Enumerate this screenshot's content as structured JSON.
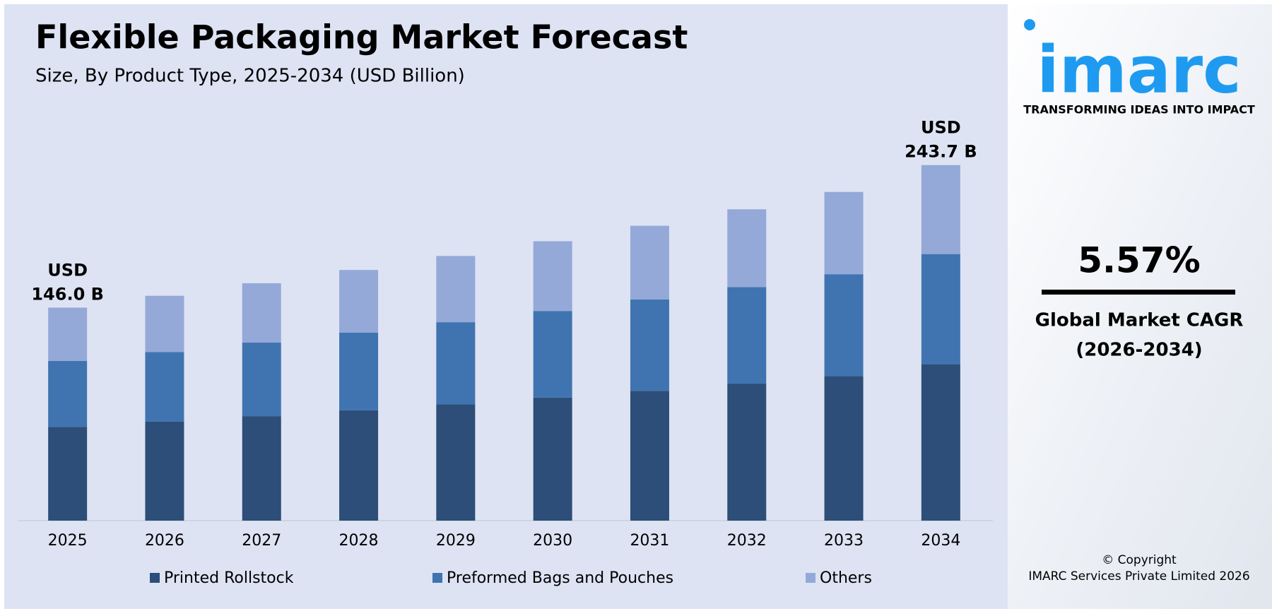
{
  "chart_data": {
    "type": "stacked_bar",
    "title": "Flexible Packaging Market Forecast",
    "subtitle": "Size, By Product Type, 2025-2034 (USD Billion)",
    "categories": [
      "2025",
      "2026",
      "2027",
      "2028",
      "2029",
      "2030",
      "2031",
      "2032",
      "2033",
      "2034"
    ],
    "series": [
      {
        "name": "Printed Rollstock",
        "color": "#2c4e78",
        "values": [
          64.2,
          67.8,
          71.6,
          75.6,
          79.8,
          84.3,
          88.9,
          93.9,
          99.1,
          107.2
        ]
      },
      {
        "name": "Preformed Bags and Pouches",
        "color": "#4074b0",
        "values": [
          45.3,
          47.8,
          50.4,
          53.3,
          56.2,
          59.4,
          62.7,
          66.2,
          69.8,
          75.5
        ]
      },
      {
        "name": "Others",
        "color": "#94a9d8",
        "values": [
          36.5,
          38.5,
          40.7,
          42.9,
          45.4,
          47.8,
          50.5,
          53.3,
          56.4,
          61.0
        ]
      }
    ],
    "ylim": [
      0,
      260
    ],
    "annotations": [
      {
        "category": "2025",
        "value": 146.0,
        "label_lines": [
          "USD",
          "146.0 B"
        ]
      },
      {
        "category": "2034",
        "value": 243.7,
        "label_lines": [
          "USD",
          "243.7 B"
        ]
      }
    ]
  },
  "sidebar": {
    "logo": "imarc",
    "tagline": "TRANSFORMING IDEAS INTO IMPACT",
    "cagr": "5.57%",
    "cagr_label": "Global Market CAGR",
    "cagr_period": "(2026-2034)",
    "copyright": [
      "© Copyright",
      "IMARC Services Private Limited 2026"
    ]
  }
}
